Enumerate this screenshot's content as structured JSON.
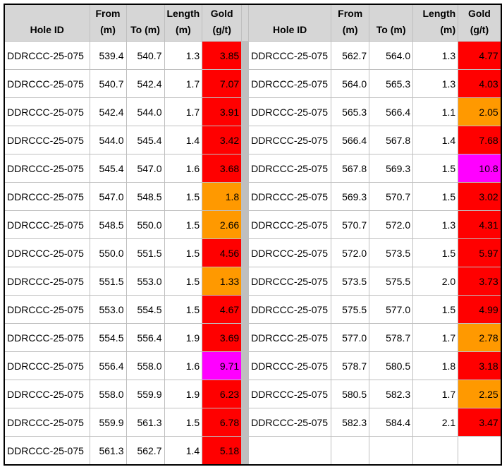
{
  "headers": {
    "hole_id": "Hole ID",
    "from": [
      "From",
      "(m)"
    ],
    "to": "To (m)",
    "length": [
      "Length",
      "(m)"
    ],
    "gold": [
      "Gold",
      "(g/t)"
    ]
  },
  "colors": {
    "red": "#ff0000",
    "orange": "#ff9900",
    "magenta": "#ff00ff",
    "header": "#d6d6d6"
  },
  "left_rows": [
    {
      "hole_id": "DDRCCC-25-075",
      "from": "539.4",
      "to": "540.7",
      "length": "1.3",
      "gold": "3.85",
      "color": "red"
    },
    {
      "hole_id": "DDRCCC-25-075",
      "from": "540.7",
      "to": "542.4",
      "length": "1.7",
      "gold": "7.07",
      "color": "red"
    },
    {
      "hole_id": "DDRCCC-25-075",
      "from": "542.4",
      "to": "544.0",
      "length": "1.7",
      "gold": "3.91",
      "color": "red"
    },
    {
      "hole_id": "DDRCCC-25-075",
      "from": "544.0",
      "to": "545.4",
      "length": "1.4",
      "gold": "3.42",
      "color": "red"
    },
    {
      "hole_id": "DDRCCC-25-075",
      "from": "545.4",
      "to": "547.0",
      "length": "1.6",
      "gold": "3.68",
      "color": "red"
    },
    {
      "hole_id": "DDRCCC-25-075",
      "from": "547.0",
      "to": "548.5",
      "length": "1.5",
      "gold": "1.8",
      "color": "orange"
    },
    {
      "hole_id": "DDRCCC-25-075",
      "from": "548.5",
      "to": "550.0",
      "length": "1.5",
      "gold": "2.66",
      "color": "orange"
    },
    {
      "hole_id": "DDRCCC-25-075",
      "from": "550.0",
      "to": "551.5",
      "length": "1.5",
      "gold": "4.56",
      "color": "red"
    },
    {
      "hole_id": "DDRCCC-25-075",
      "from": "551.5",
      "to": "553.0",
      "length": "1.5",
      "gold": "1.33",
      "color": "orange"
    },
    {
      "hole_id": "DDRCCC-25-075",
      "from": "553.0",
      "to": "554.5",
      "length": "1.5",
      "gold": "4.67",
      "color": "red"
    },
    {
      "hole_id": "DDRCCC-25-075",
      "from": "554.5",
      "to": "556.4",
      "length": "1.9",
      "gold": "3.69",
      "color": "red"
    },
    {
      "hole_id": "DDRCCC-25-075",
      "from": "556.4",
      "to": "558.0",
      "length": "1.6",
      "gold": "9.71",
      "color": "magenta"
    },
    {
      "hole_id": "DDRCCC-25-075",
      "from": "558.0",
      "to": "559.9",
      "length": "1.9",
      "gold": "6.23",
      "color": "red"
    },
    {
      "hole_id": "DDRCCC-25-075",
      "from": "559.9",
      "to": "561.3",
      "length": "1.5",
      "gold": "6.78",
      "color": "red"
    },
    {
      "hole_id": "DDRCCC-25-075",
      "from": "561.3",
      "to": "562.7",
      "length": "1.4",
      "gold": "5.18",
      "color": "red"
    }
  ],
  "right_rows": [
    {
      "hole_id": "DDRCCC-25-075",
      "from": "562.7",
      "to": "564.0",
      "length": "1.3",
      "gold": "4.77",
      "color": "red"
    },
    {
      "hole_id": "DDRCCC-25-075",
      "from": "564.0",
      "to": "565.3",
      "length": "1.3",
      "gold": "4.03",
      "color": "red"
    },
    {
      "hole_id": "DDRCCC-25-075",
      "from": "565.3",
      "to": "566.4",
      "length": "1.1",
      "gold": "2.05",
      "color": "orange"
    },
    {
      "hole_id": "DDRCCC-25-075",
      "from": "566.4",
      "to": "567.8",
      "length": "1.4",
      "gold": "7.68",
      "color": "red"
    },
    {
      "hole_id": "DDRCCC-25-075",
      "from": "567.8",
      "to": "569.3",
      "length": "1.5",
      "gold": "10.8",
      "color": "magenta"
    },
    {
      "hole_id": "DDRCCC-25-075",
      "from": "569.3",
      "to": "570.7",
      "length": "1.5",
      "gold": "3.02",
      "color": "red"
    },
    {
      "hole_id": "DDRCCC-25-075",
      "from": "570.7",
      "to": "572.0",
      "length": "1.3",
      "gold": "4.31",
      "color": "red"
    },
    {
      "hole_id": "DDRCCC-25-075",
      "from": "572.0",
      "to": "573.5",
      "length": "1.5",
      "gold": "5.97",
      "color": "red"
    },
    {
      "hole_id": "DDRCCC-25-075",
      "from": "573.5",
      "to": "575.5",
      "length": "2.0",
      "gold": "3.73",
      "color": "red"
    },
    {
      "hole_id": "DDRCCC-25-075",
      "from": "575.5",
      "to": "577.0",
      "length": "1.5",
      "gold": "4.99",
      "color": "red"
    },
    {
      "hole_id": "DDRCCC-25-075",
      "from": "577.0",
      "to": "578.7",
      "length": "1.7",
      "gold": "2.78",
      "color": "orange"
    },
    {
      "hole_id": "DDRCCC-25-075",
      "from": "578.7",
      "to": "580.5",
      "length": "1.8",
      "gold": "3.18",
      "color": "red"
    },
    {
      "hole_id": "DDRCCC-25-075",
      "from": "580.5",
      "to": "582.3",
      "length": "1.7",
      "gold": "2.25",
      "color": "orange"
    },
    {
      "hole_id": "DDRCCC-25-075",
      "from": "582.3",
      "to": "584.4",
      "length": "2.1",
      "gold": "3.47",
      "color": "red"
    },
    {
      "hole_id": "",
      "from": "",
      "to": "",
      "length": "",
      "gold": "",
      "color": "none"
    }
  ]
}
